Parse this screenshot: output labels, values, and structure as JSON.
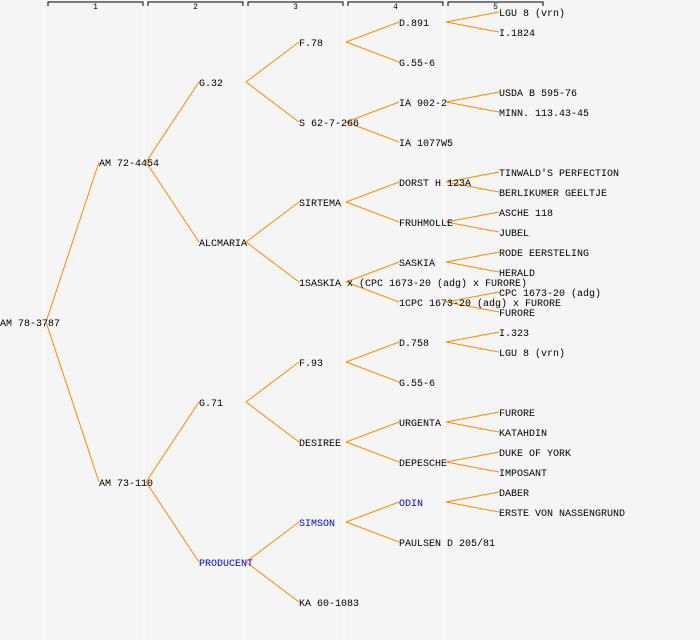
{
  "generations": [
    "1",
    "2",
    "3",
    "4",
    "5"
  ],
  "colors": {
    "line": "#ff8c00",
    "highlight": "#0000ff",
    "text": "#000000",
    "background": "#f5f5f5"
  },
  "tree": {
    "name": "AM 78-3787",
    "parents": [
      {
        "name": "AM 72-4454",
        "parents": [
          {
            "name": "G.32",
            "parents": [
              {
                "name": "F.78",
                "parents": [
                  {
                    "name": "D.891",
                    "parents": [
                      {
                        "name": "LGU 8 (vrn)"
                      },
                      {
                        "name": "I.1824"
                      }
                    ]
                  },
                  {
                    "name": "G.55-6"
                  }
                ]
              },
              {
                "name": "S 62-7-266",
                "parents": [
                  {
                    "name": "IA 902-2",
                    "parents": [
                      {
                        "name": "USDA B 595-76"
                      },
                      {
                        "name": "MINN. 113.43-45"
                      }
                    ]
                  },
                  {
                    "name": "IA 1077W5"
                  }
                ]
              }
            ]
          },
          {
            "name": "ALCMARIA",
            "parents": [
              {
                "name": "SIRTEMA",
                "parents": [
                  {
                    "name": "DORST H 123A",
                    "parents": [
                      {
                        "name": "TINWALD'S PERFECTION"
                      },
                      {
                        "name": "BERLIKUMER GEELTJE"
                      }
                    ]
                  },
                  {
                    "name": "FRUHMOLLE",
                    "parents": [
                      {
                        "name": "ASCHE 118"
                      },
                      {
                        "name": "JUBEL"
                      }
                    ]
                  }
                ]
              },
              {
                "name": "1SASKIA x (CPC 1673-20 (adg) x FURORE)",
                "parents": [
                  {
                    "name": "SASKIA",
                    "parents": [
                      {
                        "name": "RODE EERSTELING"
                      },
                      {
                        "name": "HERALD"
                      }
                    ]
                  },
                  {
                    "name": "1CPC 1673-20 (adg) x FURORE",
                    "parents": [
                      {
                        "name": "CPC 1673-20 (adg)"
                      },
                      {
                        "name": "FURORE"
                      }
                    ]
                  }
                ]
              }
            ]
          }
        ]
      },
      {
        "name": "AM 73-110",
        "parents": [
          {
            "name": "G.71",
            "parents": [
              {
                "name": "F.93",
                "parents": [
                  {
                    "name": "D.758",
                    "parents": [
                      {
                        "name": "I.323"
                      },
                      {
                        "name": "LGU 8 (vrn)"
                      }
                    ]
                  },
                  {
                    "name": "G.55-6"
                  }
                ]
              },
              {
                "name": "DESIREE",
                "parents": [
                  {
                    "name": "URGENTA",
                    "parents": [
                      {
                        "name": "FURORE"
                      },
                      {
                        "name": "KATAHDIN"
                      }
                    ]
                  },
                  {
                    "name": "DEPESCHE",
                    "parents": [
                      {
                        "name": "DUKE OF YORK"
                      },
                      {
                        "name": "IMPOSANT"
                      }
                    ]
                  }
                ]
              }
            ]
          },
          {
            "name": "PRODUCENT",
            "highlight": true,
            "parents": [
              {
                "name": "SIMSON",
                "highlight": true,
                "parents": [
                  {
                    "name": "ODIN",
                    "highlight": true,
                    "parents": [
                      {
                        "name": "DABER"
                      },
                      {
                        "name": "ERSTE VON NASSENGRUND"
                      }
                    ]
                  },
                  {
                    "name": "PAULSEN D 205/81"
                  }
                ]
              },
              {
                "name": "KA 60-1083"
              }
            ]
          }
        ]
      }
    ]
  }
}
